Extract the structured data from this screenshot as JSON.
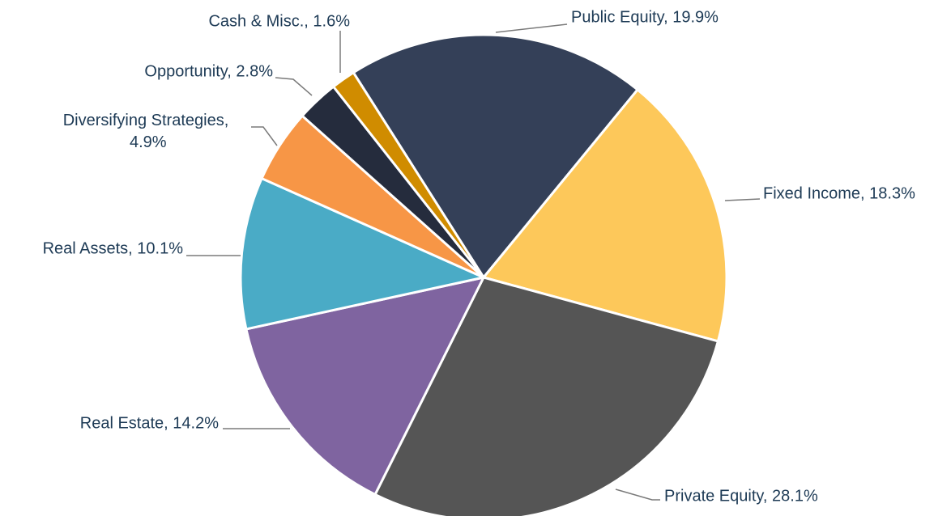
{
  "chart_data": {
    "type": "pie",
    "values": [
      19.9,
      18.3,
      28.1,
      14.2,
      10.1,
      4.9,
      2.8,
      1.6
    ],
    "value_labels": [
      "Public Equity, 19.9%",
      "Fixed Income, 18.3%",
      "Private Equity, 28.1%",
      "Real Estate, 14.2%",
      "Real Assets, 10.1%",
      "Diversifying Strategies, 4.9%",
      "Opportunity, 2.8%",
      "Cash & Misc., 1.6%"
    ],
    "colors": [
      "#344058",
      "#fdc85a",
      "#555555",
      "#7f64a0",
      "#4aabc6",
      "#f79646",
      "#252c3d",
      "#d08c00"
    ]
  }
}
